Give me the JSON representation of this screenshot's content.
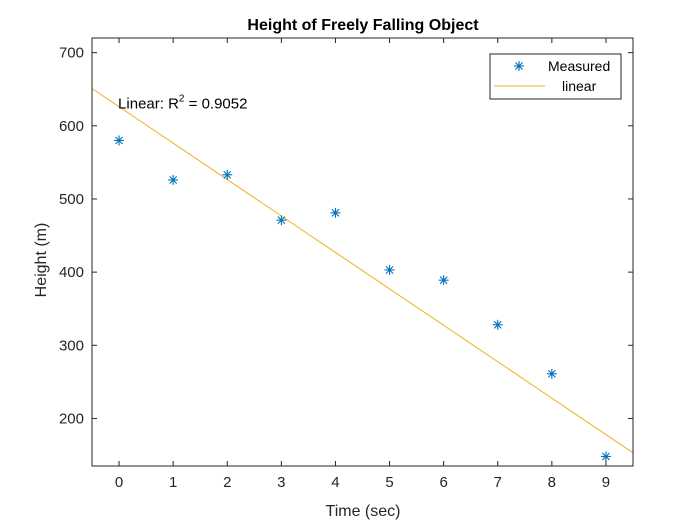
{
  "chart_data": {
    "type": "scatter",
    "title": "Height of Freely Falling Object",
    "xlabel": "Time (sec)",
    "ylabel": "Height (m)",
    "xlim": [
      -0.5,
      9.5
    ],
    "ylim": [
      135,
      720
    ],
    "xticks": [
      0,
      1,
      2,
      3,
      4,
      5,
      6,
      7,
      8,
      9
    ],
    "yticks": [
      200,
      300,
      400,
      500,
      600,
      700
    ],
    "grid": false,
    "legend_position": "top-right",
    "series": [
      {
        "name": "Measured",
        "kind": "marker",
        "marker": "asterisk",
        "color": "#0072bd",
        "x": [
          0,
          1,
          2,
          3,
          4,
          5,
          6,
          7,
          8,
          9
        ],
        "y": [
          580,
          526,
          533,
          471,
          481,
          403,
          389,
          328,
          261,
          148
        ]
      },
      {
        "name": "linear",
        "kind": "line",
        "color": "#edb120",
        "x": [
          -0.5,
          9.5
        ],
        "y": [
          651,
          153
        ]
      }
    ],
    "annotation": {
      "prefix": "Linear: R",
      "superscript": "2",
      "suffix": " = 0.9052",
      "x": 0,
      "y": 633
    }
  }
}
